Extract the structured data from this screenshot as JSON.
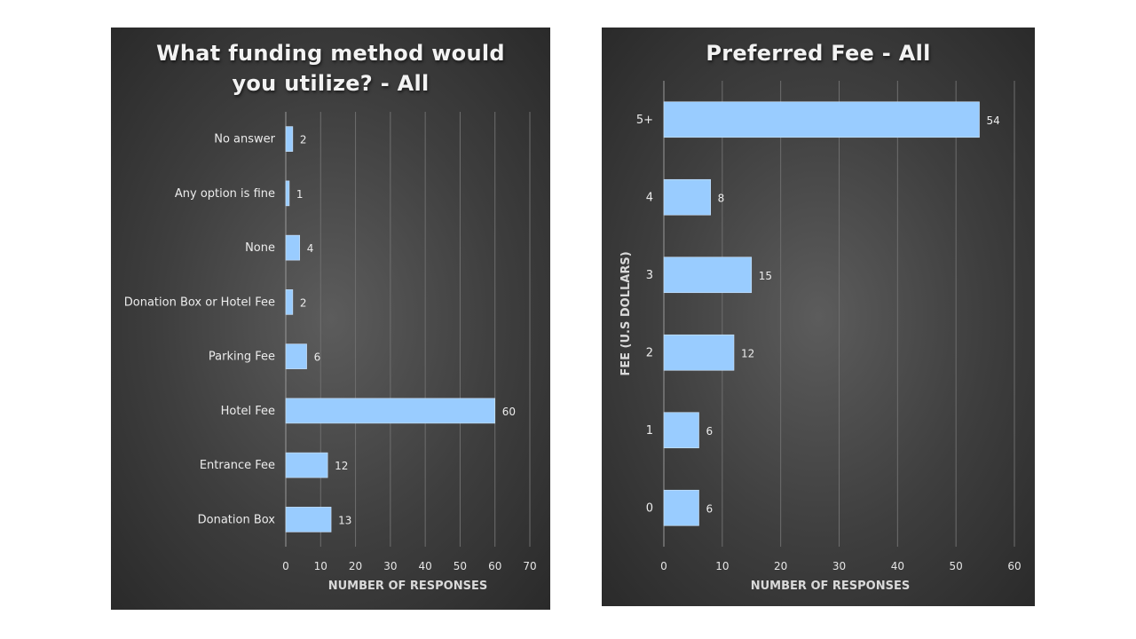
{
  "chart_data": [
    {
      "type": "bar",
      "orientation": "horizontal",
      "title": "What funding method would you utilize? - All",
      "xlabel": "NUMBER OF RESPONSES",
      "ylabel": "",
      "categories": [
        "No answer",
        "Any option is fine",
        "None",
        "Donation Box or Hotel Fee",
        "Parking Fee",
        "Hotel Fee",
        "Entrance Fee",
        "Donation Box"
      ],
      "values": [
        2,
        1,
        4,
        2,
        6,
        60,
        12,
        13
      ],
      "xlim": [
        0,
        70
      ],
      "xticks": [
        0,
        10,
        20,
        30,
        40,
        50,
        60,
        70
      ],
      "grid": true,
      "bar_color": "#99ccff"
    },
    {
      "type": "bar",
      "orientation": "horizontal",
      "title": "Preferred Fee - All",
      "xlabel": "NUMBER OF RESPONSES",
      "ylabel": "FEE (U.S DOLLARS)",
      "categories": [
        "5+",
        "4",
        "3",
        "2",
        "1",
        "0"
      ],
      "values": [
        54,
        8,
        15,
        12,
        6,
        6
      ],
      "xlim": [
        0,
        60
      ],
      "xticks": [
        0,
        10,
        20,
        30,
        40,
        50,
        60
      ],
      "grid": true,
      "bar_color": "#99ccff"
    }
  ]
}
